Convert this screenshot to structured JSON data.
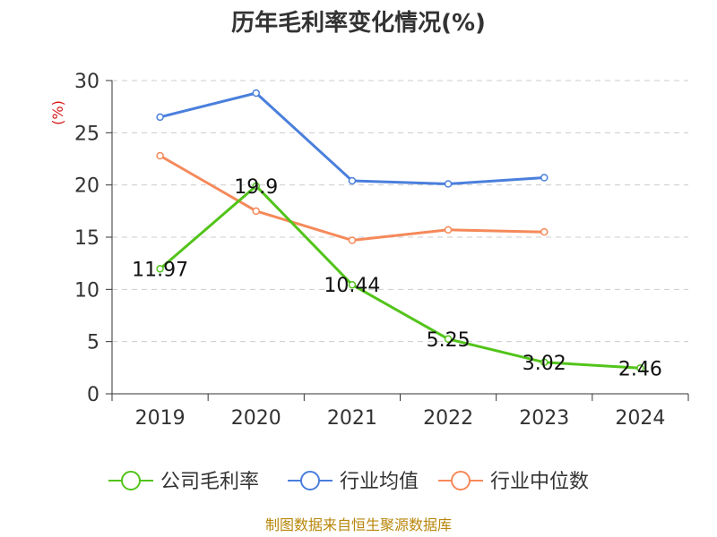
{
  "chart_data": {
    "type": "line",
    "title": "历年毛利率变化情况(%)",
    "ylabel": "(%)",
    "categories": [
      "2019",
      "2020",
      "2021",
      "2022",
      "2023",
      "2024"
    ],
    "ylim": [
      0,
      30
    ],
    "yticks": [
      0,
      5,
      10,
      15,
      20,
      25,
      30
    ],
    "grid": true,
    "legend_position": "bottom",
    "series": [
      {
        "name": "公司毛利率",
        "color": "#52c41a",
        "values": [
          11.97,
          19.9,
          10.44,
          5.25,
          3.02,
          2.46
        ],
        "labels": [
          "11.97",
          "19.9",
          "10.44",
          "5.25",
          "3.02",
          "2.46"
        ]
      },
      {
        "name": "行业均值",
        "color": "#4a7fdc",
        "values": [
          26.5,
          28.8,
          20.4,
          20.1,
          20.7,
          null
        ]
      },
      {
        "name": "行业中位数",
        "color": "#f5895a",
        "values": [
          22.8,
          17.5,
          14.7,
          15.7,
          15.5,
          null
        ]
      }
    ]
  },
  "source": "制图数据来自恒生聚源数据库"
}
